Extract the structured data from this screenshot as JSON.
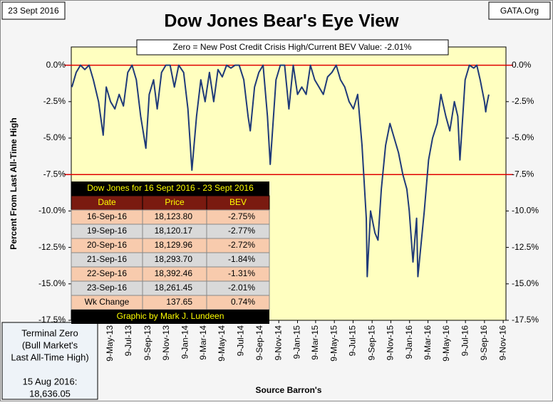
{
  "chart_data": {
    "type": "line",
    "title": "Dow Jones Bear's Eye View",
    "subtitle": "Zero = New Post Credit Crisis High/Current BEV Value:  -2.01%",
    "date_label": "23 Sept 2016",
    "source_label": "GATA.Org",
    "xlabel": "Source Barron's",
    "ylabel": "Percent From Last All-Time High",
    "color": "#1f3a78",
    "x": [
      "2013-01-04",
      "2013-01-18",
      "2013-02-01",
      "2013-02-15",
      "2013-03-01",
      "2013-03-15",
      "2013-04-01",
      "2013-04-16",
      "2013-04-26",
      "2013-05-10",
      "2013-05-24",
      "2013-06-07",
      "2013-06-21",
      "2013-07-05",
      "2013-07-19",
      "2013-08-02",
      "2013-08-16",
      "2013-09-02",
      "2013-09-13",
      "2013-09-27",
      "2013-10-09",
      "2013-10-23",
      "2013-11-06",
      "2013-11-20",
      "2013-12-04",
      "2013-12-18",
      "2014-01-03",
      "2014-01-17",
      "2014-01-30",
      "2014-02-14",
      "2014-02-28",
      "2014-03-14",
      "2014-03-28",
      "2014-04-11",
      "2014-04-25",
      "2014-05-09",
      "2014-05-23",
      "2014-06-06",
      "2014-06-20",
      "2014-07-03",
      "2014-07-18",
      "2014-08-01",
      "2014-08-08",
      "2014-08-22",
      "2014-09-05",
      "2014-09-19",
      "2014-10-03",
      "2014-10-12",
      "2014-10-31",
      "2014-11-14",
      "2014-11-28",
      "2014-12-12",
      "2014-12-26",
      "2015-01-09",
      "2015-01-23",
      "2015-02-06",
      "2015-02-20",
      "2015-03-06",
      "2015-03-20",
      "2015-04-03",
      "2015-04-17",
      "2015-05-01",
      "2015-05-15",
      "2015-05-29",
      "2015-06-12",
      "2015-06-26",
      "2015-07-10",
      "2015-07-24",
      "2015-08-07",
      "2015-08-21",
      "2015-08-24",
      "2015-09-04",
      "2015-09-18",
      "2015-09-28",
      "2015-10-09",
      "2015-10-23",
      "2015-11-06",
      "2015-11-20",
      "2015-12-04",
      "2015-12-18",
      "2015-12-31",
      "2016-01-08",
      "2016-01-20",
      "2016-02-01",
      "2016-02-05",
      "2016-02-26",
      "2016-03-11",
      "2016-03-24",
      "2016-04-08",
      "2016-04-20",
      "2016-05-06",
      "2016-05-19",
      "2016-06-03",
      "2016-06-14",
      "2016-06-21",
      "2016-07-08",
      "2016-07-22",
      "2016-08-05",
      "2016-08-15",
      "2016-08-26",
      "2016-09-09",
      "2016-09-13",
      "2016-09-16",
      "2016-09-23"
    ],
    "values": [
      -1.5,
      -0.5,
      0,
      -0.3,
      0,
      -1.0,
      -2.5,
      -4.8,
      -1.5,
      -2.5,
      -3.0,
      -2.0,
      -2.8,
      -0.5,
      0,
      -1.0,
      -3.5,
      -5.7,
      -2.0,
      -1.0,
      -3.0,
      -0.5,
      0,
      0,
      -1.5,
      0,
      -0.5,
      -3.0,
      -7.2,
      -3.5,
      -1.0,
      -2.5,
      -0.5,
      -2.5,
      -0.3,
      -0.8,
      0,
      -0.2,
      0,
      0,
      -1.0,
      -3.5,
      -4.5,
      -1.5,
      -0.5,
      0,
      -3.5,
      -6.8,
      -1.0,
      0,
      0,
      -3.0,
      0,
      -2.0,
      -1.5,
      -2.0,
      0,
      -1.0,
      -1.5,
      -2.0,
      -0.8,
      -0.5,
      0,
      -1.0,
      -1.5,
      -2.5,
      -3.0,
      -2.0,
      -5.5,
      -10.5,
      -14.5,
      -10.0,
      -11.5,
      -12.0,
      -8.5,
      -5.5,
      -4.0,
      -5.0,
      -6.0,
      -7.5,
      -8.5,
      -10.0,
      -13.5,
      -10.5,
      -14.5,
      -10.0,
      -6.5,
      -5.0,
      -4.0,
      -2.0,
      -3.5,
      -4.5,
      -2.5,
      -3.5,
      -6.5,
      -1.0,
      0,
      -0.2,
      0,
      -1.0,
      -2.5,
      -3.2,
      -2.75,
      -2.01
    ],
    "xlim": [
      "2013-01-02",
      "2016-11-18"
    ],
    "xticks": [
      {
        "value": "2013-05-09",
        "label": "9-May-13"
      },
      {
        "value": "2013-07-09",
        "label": "9-Jul-13"
      },
      {
        "value": "2013-09-09",
        "label": "9-Sep-13"
      },
      {
        "value": "2013-11-09",
        "label": "9-Nov-13"
      },
      {
        "value": "2014-01-09",
        "label": "9-Jan-14"
      },
      {
        "value": "2014-03-09",
        "label": "9-Mar-14"
      },
      {
        "value": "2014-05-09",
        "label": "9-May-14"
      },
      {
        "value": "2014-07-09",
        "label": "9-Jul-14"
      },
      {
        "value": "2014-09-09",
        "label": "9-Sep-14"
      },
      {
        "value": "2014-11-09",
        "label": "9-Nov-14"
      },
      {
        "value": "2015-01-09",
        "label": "9-Jan-15"
      },
      {
        "value": "2015-03-09",
        "label": "9-Mar-15"
      },
      {
        "value": "2015-05-09",
        "label": "9-May-15"
      },
      {
        "value": "2015-07-09",
        "label": "9-Jul-15"
      },
      {
        "value": "2015-09-09",
        "label": "9-Sep-15"
      },
      {
        "value": "2015-11-09",
        "label": "9-Nov-15"
      },
      {
        "value": "2016-01-09",
        "label": "9-Jan-16"
      },
      {
        "value": "2016-03-09",
        "label": "9-Mar-16"
      },
      {
        "value": "2016-05-09",
        "label": "9-May-16"
      },
      {
        "value": "2016-07-09",
        "label": "9-Jul-16"
      },
      {
        "value": "2016-09-09",
        "label": "9-Sep-16"
      },
      {
        "value": "2016-11-09",
        "label": "9-Nov-16"
      }
    ],
    "ylim": [
      -17.5,
      1.25
    ],
    "yticks": [
      {
        "value": 0,
        "label": "0.0%"
      },
      {
        "value": -2.5,
        "label": "-2.5%"
      },
      {
        "value": -5,
        "label": "-5.0%"
      },
      {
        "value": -7.5,
        "label": "-7.5%"
      },
      {
        "value": -10,
        "label": "-10.0%"
      },
      {
        "value": -12.5,
        "label": "-12.5%"
      },
      {
        "value": -15,
        "label": "-15.0%"
      },
      {
        "value": -17.5,
        "label": "-17.5%"
      }
    ],
    "reference_lines": {
      "color": "#e00000",
      "values": [
        0,
        -7.5
      ]
    },
    "table": {
      "title": "Dow Jones for  16 Sept 2016 - 23 Sept 2016",
      "columns": [
        "Date",
        "Price",
        "BEV"
      ],
      "rows": [
        [
          "16-Sep-16",
          "18,123.80",
          "-2.75%"
        ],
        [
          "19-Sep-16",
          "18,120.17",
          "-2.77%"
        ],
        [
          "20-Sep-16",
          "18,129.96",
          "-2.72%"
        ],
        [
          "21-Sep-16",
          "18,293.70",
          "-1.84%"
        ],
        [
          "22-Sep-16",
          "18,392.46",
          "-1.31%"
        ],
        [
          "23-Sep-16",
          "18,261.45",
          "-2.01%"
        ],
        [
          "Wk Change",
          "137.65",
          "0.74%"
        ]
      ],
      "footer": "Graphic by Mark J. Lundeen"
    },
    "note": [
      "Terminal Zero",
      "(Bull Market's",
      "Last All-Time High)",
      "",
      "15 Aug 2016:",
      "18,636.05"
    ]
  }
}
